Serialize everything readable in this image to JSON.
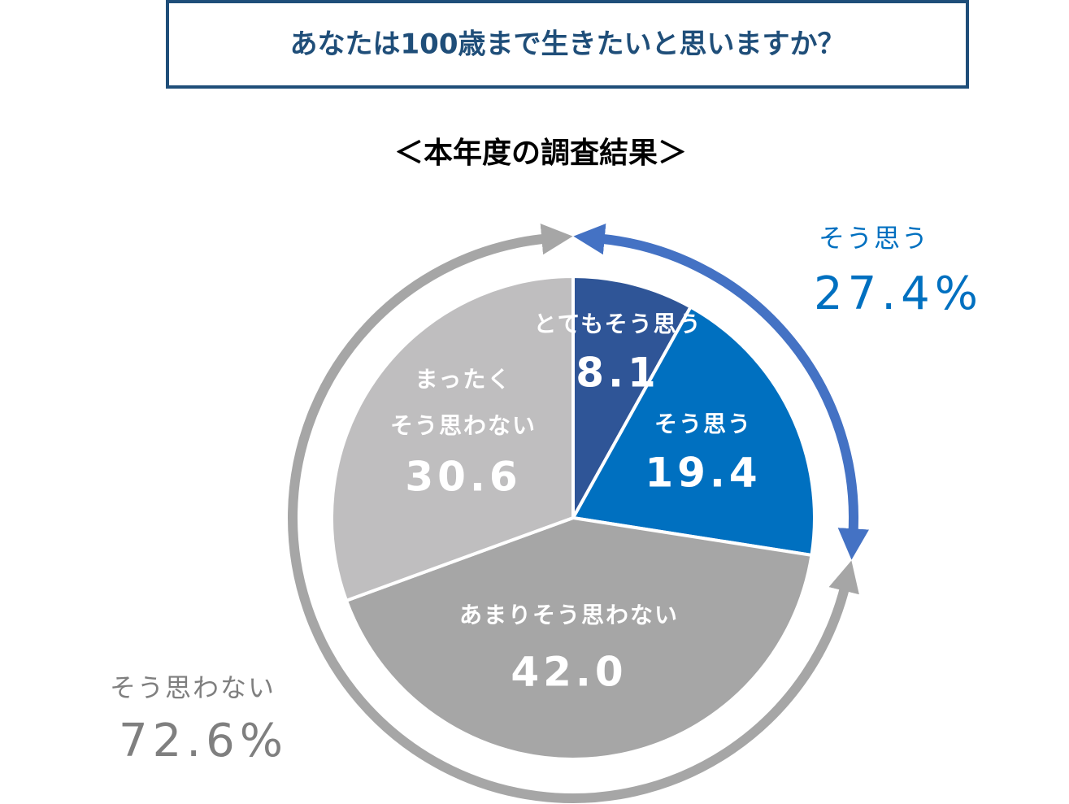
{
  "chart_data": {
    "type": "pie",
    "title": "あなたは100歳まで生きたいと思いますか？",
    "subtitle": "＜本年度の調査結果＞",
    "categories": [
      [
        "とてもそう思う"
      ],
      [
        "そう思う"
      ],
      [
        "あまりそう思わない"
      ],
      [
        "まったく",
        "そう思わない"
      ]
    ],
    "values": [
      8.1,
      19.4,
      42.0,
      30.6
    ],
    "value_labels": [
      "8.1",
      "19.4",
      "42.0",
      "30.6"
    ],
    "colors": [
      "#2f5597",
      "#0070c0",
      "#a6a6a6",
      "#bfbebf"
    ],
    "groups": [
      {
        "name": "そう思う",
        "value": 27.4,
        "value_label": "27.4%",
        "color": "#4472c4",
        "text_color": "#0070c0"
      },
      {
        "name": "そう思わない",
        "value": 72.6,
        "value_label": "72.6%",
        "color": "#a6a6a6",
        "text_color": "#7f7f7f"
      }
    ]
  }
}
